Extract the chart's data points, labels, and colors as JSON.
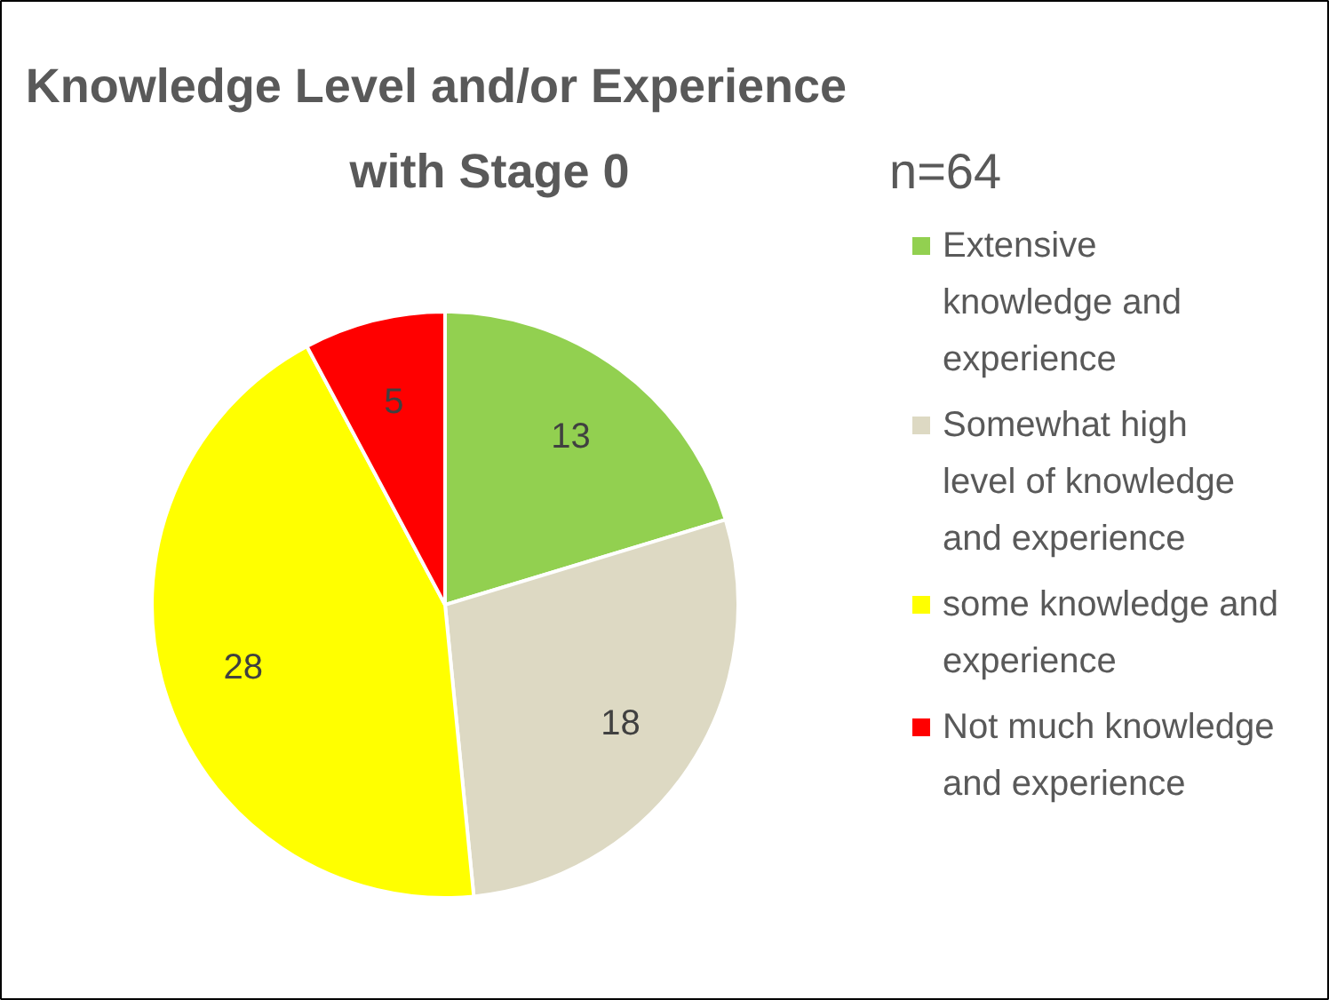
{
  "chart_data": {
    "type": "pie",
    "title": "Knowledge Level and/or Experience\nwith Stage 0",
    "categories": [
      "Extensive knowledge and experience",
      "Somewhat high level of knowledge and experience",
      "some knowledge and experience",
      "Not much knowledge and experience"
    ],
    "values": [
      13,
      18,
      28,
      5
    ],
    "colors": [
      "#92d050",
      "#ddd9c3",
      "#ffff00",
      "#ff0000"
    ],
    "data_labels": true,
    "legend": "right",
    "annotations": [
      "n=64"
    ]
  }
}
